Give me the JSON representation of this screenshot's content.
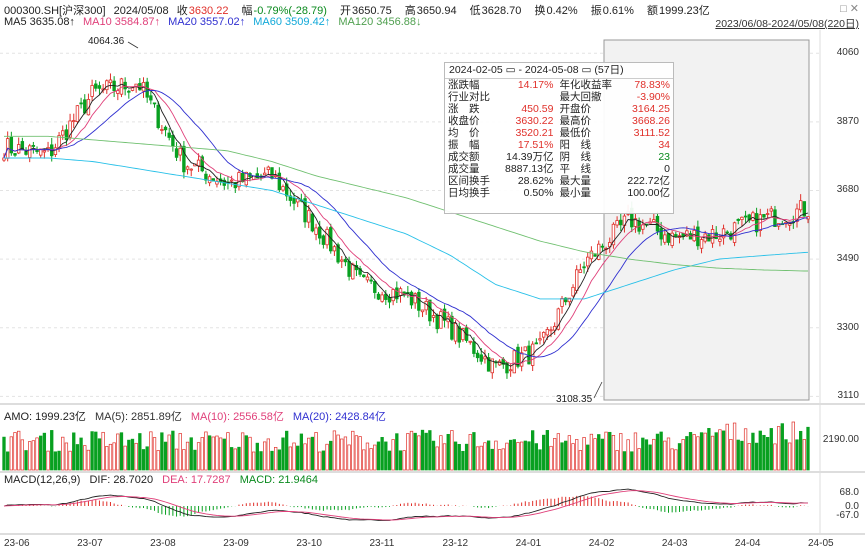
{
  "header": {
    "symbol": "000300.SH[沪深300]",
    "date": "2024/05/08",
    "close_label": "收",
    "close": "3630.22",
    "change_label": "幅",
    "change": "-0.79%(-28.79)",
    "open_label": "开",
    "open": "3650.75",
    "high_label": "高",
    "high": "3650.94",
    "low_label": "低",
    "low": "3628.70",
    "turnover_label": "换",
    "turnover": "0.42%",
    "amp_label": "振",
    "amp": "0.61%",
    "amount_label": "额",
    "amount": "1999.23亿",
    "range": "2023/06/08-2024/05/08(220日)"
  },
  "ma": {
    "ma5": "MA5 3635.08↑",
    "ma10": "MA10 3584.87↑",
    "ma20": "MA20 3557.02↑",
    "ma60": "MA60 3509.42↑",
    "ma120": "MA120 3456.88↓"
  },
  "stats_box": {
    "from": "2024-02-05",
    "sep": "-",
    "to": "2024-05-08",
    "days": "(57日)",
    "rows": [
      [
        "涨跌幅",
        "14.17%",
        "年化收益率",
        "78.83%"
      ],
      [
        "行业对比",
        "",
        "最大回撤",
        "-3.90%"
      ],
      [
        "涨　跌",
        "450.59",
        "开盘价",
        "3164.25"
      ],
      [
        "收盘价",
        "3630.22",
        "最高价",
        "3668.26"
      ],
      [
        "均　价",
        "3520.21",
        "最低价",
        "3111.52"
      ],
      [
        "振　幅",
        "17.51%",
        "阳　线",
        "34"
      ],
      [
        "成交额",
        "14.39万亿",
        "阴　线",
        "23"
      ],
      [
        "成交量",
        "8887.13亿",
        "平　线",
        "0"
      ],
      [
        "区间换手",
        "28.62%",
        "最大量",
        "222.72亿"
      ],
      [
        "日均换手",
        "0.50%",
        "最小量",
        "100.00亿"
      ]
    ]
  },
  "amo": {
    "amo": "AMO: 1999.23亿",
    "ma5": "MA(5): 2851.89亿",
    "ma10": "MA(10): 2556.58亿",
    "ma20": "MA(20): 2428.84亿"
  },
  "macd": {
    "name": "MACD(12,26,9)",
    "dif": "DIF: 28.7020",
    "dea": "DEA: 17.7287",
    "macd": "MACD: 21.9464"
  },
  "axes": {
    "price_ticks": [
      "4060",
      "3870",
      "3680",
      "3490",
      "3300",
      "3110"
    ],
    "amo_ticks": [
      "2190.00"
    ],
    "macd_ticks": [
      "68.0",
      "0.0",
      "-67.0"
    ],
    "x_ticks": [
      "23-06",
      "23-07",
      "23-08",
      "23-09",
      "23-10",
      "23-11",
      "23-12",
      "24-01",
      "24-02",
      "24-03",
      "24-04",
      "24-05"
    ]
  },
  "annotations": {
    "high": "4064.36",
    "low": "3108.35"
  },
  "colors": {
    "up": "#e0302a",
    "down": "#08a020",
    "ma5": "#222222",
    "ma10": "#e0407a",
    "ma20": "#3030d0",
    "ma60": "#28c0e8",
    "ma120": "#70c070"
  },
  "chart_data": {
    "type": "candlestick",
    "title": "000300.SH[沪深300]",
    "ylim": [
      3100,
      4080
    ],
    "x": [
      "23-06",
      "23-07",
      "23-08",
      "23-09",
      "23-10",
      "23-11",
      "23-12",
      "24-01",
      "24-02",
      "24-03",
      "24-04",
      "24-05"
    ],
    "close_anchors": [
      3800,
      3780,
      3950,
      3980,
      3760,
      3700,
      3720,
      3580,
      3420,
      3390,
      3300,
      3190,
      3240,
      3480,
      3600,
      3550,
      3560,
      3600,
      3630
    ],
    "ma_series": {
      "ma60": [
        3770,
        3770,
        3760,
        3740,
        3720,
        3700,
        3680,
        3640,
        3600,
        3560,
        3500,
        3420,
        3380,
        3380,
        3420,
        3460,
        3490,
        3500,
        3509
      ],
      "ma120": [
        3830,
        3830,
        3820,
        3810,
        3800,
        3790,
        3760,
        3720,
        3690,
        3660,
        3620,
        3580,
        3540,
        3510,
        3490,
        3475,
        3465,
        3460,
        3457
      ]
    },
    "high": 4064.36,
    "low": 3108.35
  }
}
